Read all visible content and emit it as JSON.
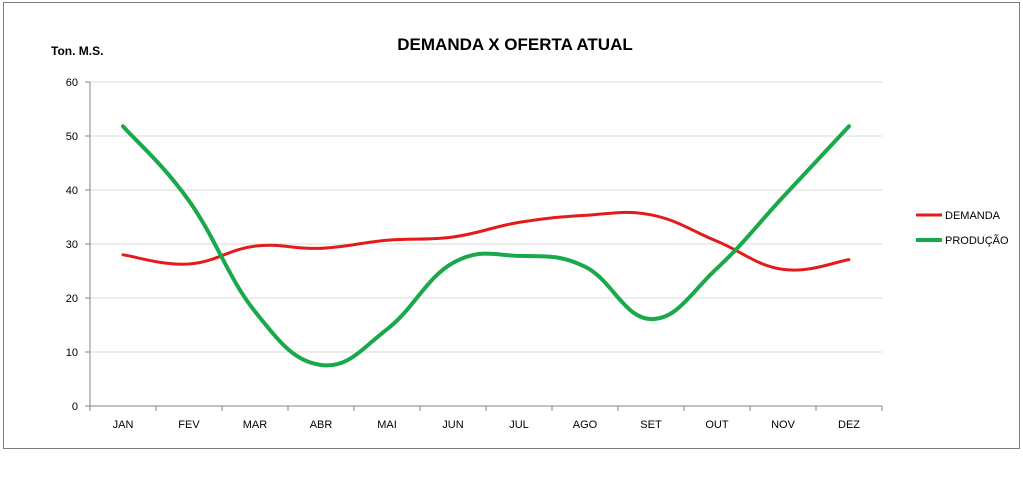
{
  "chart_data": {
    "type": "line",
    "title": "DEMANDA X OFERTA ATUAL",
    "ylabel": "Ton. M.S.",
    "xlabel": "",
    "categories": [
      "JAN",
      "FEV",
      "MAR",
      "ABR",
      "MAI",
      "JUN",
      "JUL",
      "AGO",
      "SET",
      "OUT",
      "NOV",
      "DEZ"
    ],
    "ylim": [
      0,
      60
    ],
    "yticks": [
      0,
      10,
      20,
      30,
      40,
      50,
      60
    ],
    "grid": true,
    "legend_position": "right",
    "smooth": true,
    "series": [
      {
        "name": "DEMANDA",
        "color": "#e31b1b",
        "values": [
          28,
          26.3,
          29.6,
          29.2,
          30.7,
          31.3,
          34,
          35.3,
          35.4,
          30.5,
          25.3,
          27.1
        ]
      },
      {
        "name": "PRODUÇÃO",
        "color": "#19a84a",
        "values": [
          51.8,
          38,
          17.5,
          7.6,
          14.2,
          26.5,
          27.8,
          25.8,
          16.1,
          25.5,
          38.7,
          51.8
        ]
      }
    ]
  }
}
